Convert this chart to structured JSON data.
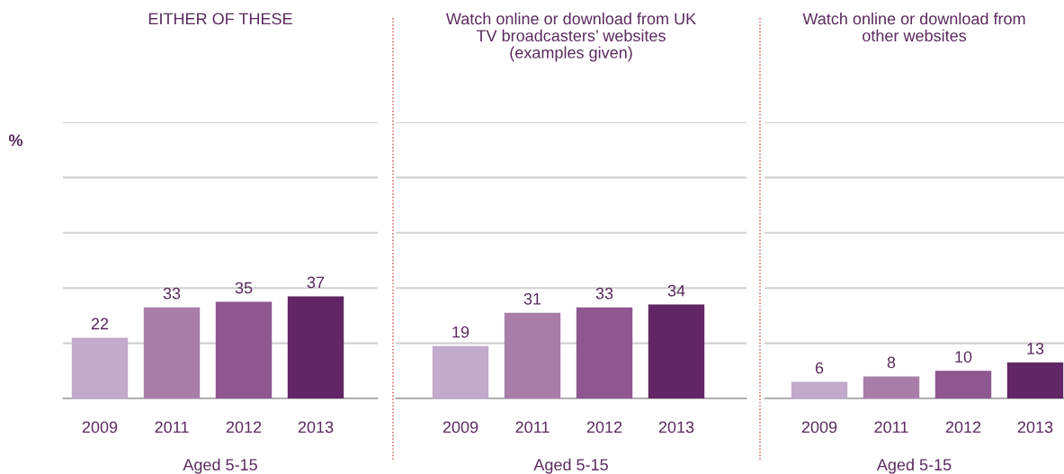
{
  "chart_data": [
    {
      "type": "bar",
      "title": "EITHER OF THESE",
      "ylabel": "%",
      "xlabel": "Aged 5-15",
      "categories": [
        "2009",
        "2011",
        "2012",
        "2013"
      ],
      "values": [
        22,
        33,
        35,
        37
      ],
      "colors": [
        "#c3a9cb",
        "#a87ea9",
        "#8e5790",
        "#612666"
      ],
      "data_labels": true,
      "ylim": [
        0,
        100
      ],
      "yticks": [
        {
          "value": 0,
          "label": null
        },
        {
          "value": 20,
          "label": null
        },
        {
          "value": 40,
          "label": null
        },
        {
          "value": 60,
          "label": null
        },
        {
          "value": 80,
          "label": null
        },
        {
          "value": 100,
          "label": null
        }
      ],
      "grid": "y",
      "tick_labels": "x"
    },
    {
      "type": "bar",
      "title": "Watch online or download from UK\nTV broadcasters’ websites\n(examples given)",
      "xlabel": "Aged 5-15",
      "categories": [
        "2009",
        "2011",
        "2012",
        "2013"
      ],
      "values": [
        19,
        31,
        33,
        34
      ],
      "colors": [
        "#c3a9cb",
        "#a87ea9",
        "#8e5790",
        "#612666"
      ],
      "data_labels": true,
      "ylim": [
        0,
        100
      ],
      "yticks": [
        {
          "value": 0,
          "label": null
        },
        {
          "value": 20,
          "label": null
        },
        {
          "value": 40,
          "label": null
        },
        {
          "value": 60,
          "label": null
        },
        {
          "value": 80,
          "label": null
        },
        {
          "value": 100,
          "label": null
        }
      ],
      "grid": "y",
      "tick_labels": "x"
    },
    {
      "type": "bar",
      "title": "Watch online or download from\nother websites",
      "xlabel": "Aged 5-15",
      "categories": [
        "2009",
        "2011",
        "2012",
        "2013"
      ],
      "values": [
        6,
        8,
        10,
        13
      ],
      "colors": [
        "#c3a9cb",
        "#a87ea9",
        "#8e5790",
        "#612666"
      ],
      "data_labels": true,
      "ylim": [
        0,
        100
      ],
      "yticks": [
        {
          "value": 0,
          "label": null
        },
        {
          "value": 20,
          "label": null
        },
        {
          "value": 40,
          "label": null
        },
        {
          "value": 60,
          "label": null
        },
        {
          "value": 80,
          "label": null
        },
        {
          "value": 100,
          "label": null
        }
      ],
      "grid": "y",
      "tick_labels": "x"
    }
  ]
}
